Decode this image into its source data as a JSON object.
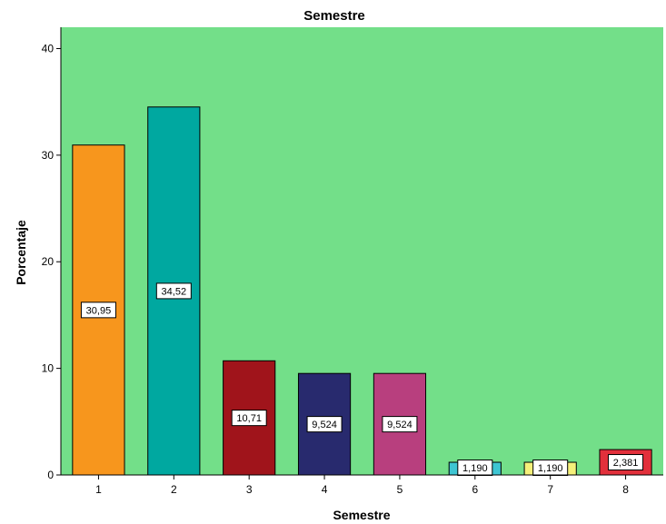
{
  "chart_data": {
    "type": "bar",
    "title": "Semestre",
    "xlabel": "Semestre",
    "ylabel": "Porcentaje",
    "categories": [
      "1",
      "2",
      "3",
      "4",
      "5",
      "6",
      "7",
      "8"
    ],
    "values": [
      30.95,
      34.52,
      10.71,
      9.524,
      9.524,
      1.19,
      1.19,
      2.381
    ],
    "data_labels": [
      "30,95",
      "34,52",
      "10,71",
      "9,524",
      "9,524",
      "1,190",
      "1,190",
      "2,381"
    ],
    "colors": [
      "#f7961d",
      "#00a8a0",
      "#a0141b",
      "#282a6e",
      "#b83f7e",
      "#3ec5d2",
      "#f5f07a",
      "#e2303b"
    ],
    "ylim": [
      0,
      42
    ],
    "yticks": [
      "0",
      "10",
      "20",
      "30",
      "40"
    ],
    "plot_background": "#73df89",
    "grid": false,
    "legend": false
  }
}
